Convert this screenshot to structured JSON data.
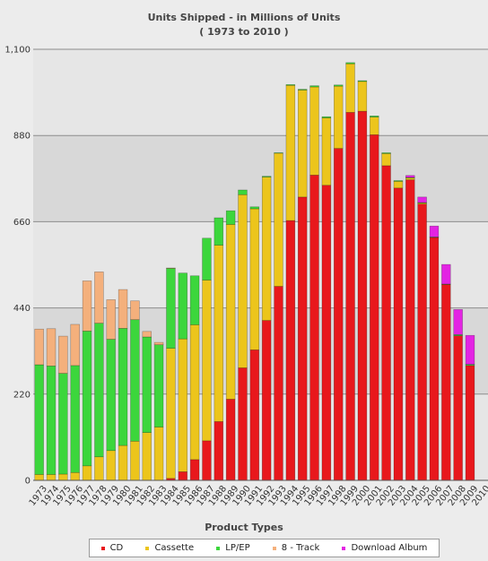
{
  "chart_data": {
    "type": "bar",
    "stacked": true,
    "title": "Units Shipped - in Millions of Units",
    "subtitle": "( 1973 to 2010 )",
    "xlabel": "Product Types",
    "ylabel": "",
    "ylim": [
      0,
      1100
    ],
    "yticks": [
      "0",
      "220",
      "440",
      "660",
      "880",
      "1,100"
    ],
    "grid": true,
    "legend_position": "bottom",
    "categories": [
      "1973",
      "1974",
      "1975",
      "1976",
      "1977",
      "1978",
      "1979",
      "1980",
      "1981",
      "1982",
      "1983",
      "1984",
      "1985",
      "1986",
      "1987",
      "1988",
      "1989",
      "1990",
      "1991",
      "1992",
      "1993",
      "1994",
      "1995",
      "1996",
      "1997",
      "1998",
      "1999",
      "2000",
      "2001",
      "2002",
      "2003",
      "2004",
      "2005",
      "2006",
      "2007",
      "2008",
      "2009",
      "2010"
    ],
    "series": [
      {
        "name": "CD",
        "color": "#e8181c",
        "values": [
          0,
          0,
          0,
          0,
          0,
          0,
          0,
          0,
          0,
          0,
          0,
          5,
          22,
          53,
          101,
          150,
          207,
          287,
          333,
          408,
          495,
          663,
          723,
          779,
          753,
          847,
          939,
          942,
          882,
          803,
          746,
          767,
          705,
          620,
          500,
          369,
          293,
          0
        ]
      },
      {
        "name": "Cassette",
        "color": "#ecc51c",
        "values": [
          15,
          15,
          16,
          20,
          37,
          60,
          76,
          89,
          100,
          122,
          136,
          332,
          339,
          344,
          410,
          450,
          446,
          442,
          360,
          366,
          340,
          345,
          273,
          225,
          172,
          159,
          124,
          76,
          45,
          31,
          17,
          5,
          3,
          0,
          0,
          0,
          0,
          0
        ]
      },
      {
        "name": "LP/EP",
        "color": "#3cd63c",
        "values": [
          280,
          277,
          257,
          273,
          344,
          341,
          284,
          299,
          310,
          244,
          210,
          204,
          168,
          125,
          107,
          70,
          35,
          12,
          5,
          2,
          1,
          2,
          2,
          3,
          3,
          3,
          3,
          2,
          3,
          2,
          2,
          1,
          1,
          1,
          1,
          3,
          3,
          0
        ]
      },
      {
        "name": "8 - Track",
        "color": "#f4b07c",
        "values": [
          91,
          95,
          95,
          105,
          128,
          131,
          101,
          99,
          48,
          14,
          6,
          1,
          0,
          0,
          0,
          0,
          0,
          0,
          0,
          0,
          0,
          0,
          0,
          0,
          0,
          0,
          0,
          0,
          0,
          0,
          0,
          0,
          0,
          0,
          0,
          0,
          0,
          0
        ]
      },
      {
        "name": "Download Album",
        "color": "#e324e3",
        "values": [
          0,
          0,
          0,
          0,
          0,
          0,
          0,
          0,
          0,
          0,
          0,
          0,
          0,
          0,
          0,
          0,
          0,
          0,
          0,
          0,
          0,
          0,
          0,
          0,
          0,
          0,
          0,
          0,
          0,
          0,
          0,
          5,
          14,
          28,
          50,
          64,
          74,
          0
        ]
      }
    ]
  }
}
